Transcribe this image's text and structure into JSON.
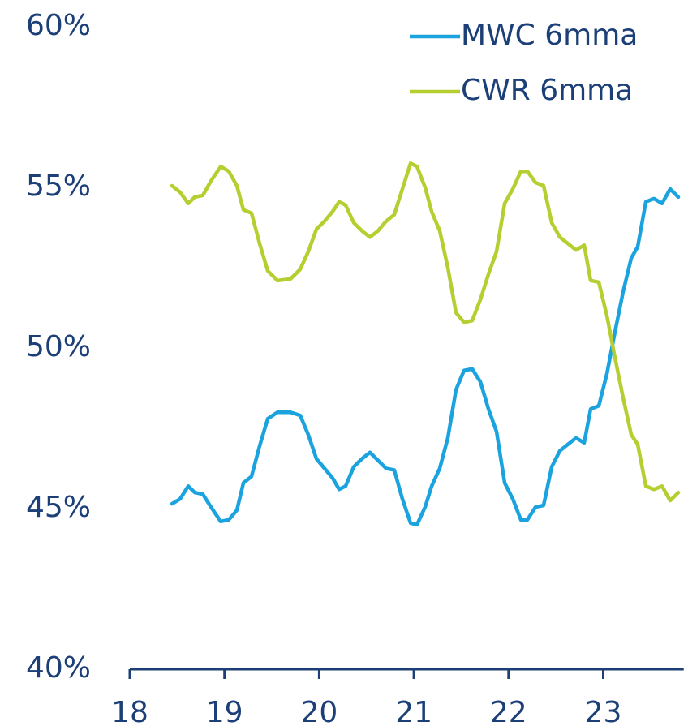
{
  "chart_data": {
    "type": "line",
    "x": [
      18.446,
      18.531,
      18.617,
      18.686,
      18.771,
      18.857,
      18.96,
      19.045,
      19.131,
      19.2,
      19.285,
      19.371,
      19.457,
      19.56,
      19.697,
      19.8,
      19.885,
      19.971,
      20.057,
      20.142,
      20.211,
      20.279,
      20.365,
      20.451,
      20.536,
      20.622,
      20.708,
      20.793,
      20.879,
      20.965,
      21.033,
      21.119,
      21.188,
      21.273,
      21.359,
      21.445,
      21.53,
      21.616,
      21.702,
      21.788,
      21.873,
      21.959,
      22.045,
      22.13,
      22.199,
      22.285,
      22.37,
      22.456,
      22.542,
      22.627,
      22.713,
      22.799,
      22.867,
      22.953,
      23.039,
      23.124,
      23.21,
      23.296,
      23.364,
      23.45,
      23.536,
      23.621,
      23.707,
      23.793
    ],
    "series": [
      {
        "name": "MWC 6mma",
        "color": "#1aa3de",
        "values": [
          45.15,
          45.3,
          45.7,
          45.5,
          45.45,
          45.05,
          44.6,
          44.65,
          44.95,
          45.8,
          46.0,
          46.95,
          47.8,
          48.0,
          48.0,
          47.9,
          47.3,
          46.55,
          46.25,
          45.95,
          45.6,
          45.7,
          46.3,
          46.55,
          46.75,
          46.5,
          46.25,
          46.2,
          45.3,
          44.55,
          44.5,
          45.05,
          45.7,
          46.25,
          47.2,
          48.7,
          49.3,
          49.35,
          48.95,
          48.1,
          47.4,
          45.8,
          45.3,
          44.65,
          44.65,
          45.05,
          45.1,
          46.3,
          46.8,
          47.0,
          47.2,
          47.05,
          48.1,
          48.2,
          49.2,
          50.5,
          51.75,
          52.8,
          53.15,
          54.55,
          54.65,
          54.5,
          54.95,
          54.7
        ]
      },
      {
        "name": "CWR 6mma",
        "color": "#b6ce30",
        "values": [
          55.05,
          54.85,
          54.5,
          54.7,
          54.75,
          55.2,
          55.65,
          55.5,
          55.05,
          54.3,
          54.2,
          53.25,
          52.4,
          52.1,
          52.15,
          52.45,
          53.0,
          53.7,
          53.95,
          54.25,
          54.55,
          54.45,
          53.9,
          53.65,
          53.45,
          53.65,
          53.95,
          54.15,
          54.95,
          55.75,
          55.65,
          55.0,
          54.25,
          53.65,
          52.5,
          51.1,
          50.8,
          50.85,
          51.5,
          52.3,
          53.0,
          54.5,
          54.95,
          55.5,
          55.5,
          55.15,
          55.05,
          53.9,
          53.45,
          53.25,
          53.05,
          53.2,
          52.1,
          52.05,
          51.0,
          49.7,
          48.45,
          47.3,
          47.0,
          45.7,
          45.6,
          45.7,
          45.25,
          45.5
        ]
      }
    ],
    "xlim": [
      18,
      23.85
    ],
    "xticks": [
      18,
      19,
      20,
      21,
      22,
      23
    ],
    "ylim": [
      40,
      60
    ],
    "yticks": [
      {
        "value": 40,
        "label": "40%"
      },
      {
        "value": 45,
        "label": "45%"
      },
      {
        "value": 50,
        "label": "50%"
      },
      {
        "value": 55,
        "label": "55%"
      },
      {
        "value": 60,
        "label": "60%"
      }
    ],
    "grid": false,
    "legend": "top-right"
  }
}
